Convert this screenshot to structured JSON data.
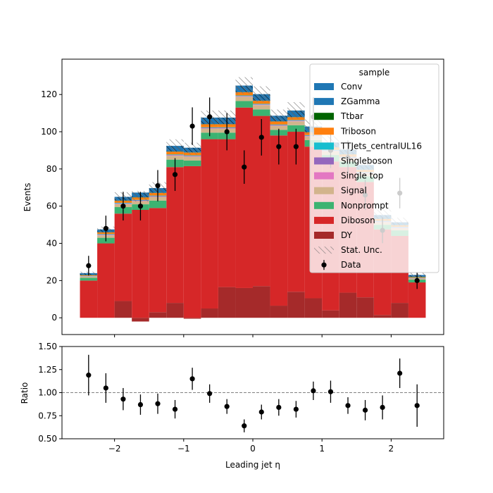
{
  "chart_data": {
    "type": "bar",
    "stacked": true,
    "title": "",
    "x": {
      "label": "Leading jet  η",
      "ticks": [
        -2,
        -1,
        0,
        1,
        2
      ],
      "tick_labels": [
        "−2",
        "−1",
        "0",
        "1",
        "2"
      ],
      "range": [
        -2.76,
        2.76
      ]
    },
    "bins": [
      [
        -2.5,
        -2.25
      ],
      [
        -2.25,
        -2.0
      ],
      [
        -2.0,
        -1.75
      ],
      [
        -1.75,
        -1.5
      ],
      [
        -1.5,
        -1.25
      ],
      [
        -1.25,
        -1.0
      ],
      [
        -1.0,
        -0.75
      ],
      [
        -0.75,
        -0.5
      ],
      [
        -0.5,
        -0.25
      ],
      [
        -0.25,
        0.0
      ],
      [
        0.0,
        0.25
      ],
      [
        0.25,
        0.5
      ],
      [
        0.5,
        0.75
      ],
      [
        0.75,
        1.0
      ],
      [
        1.0,
        1.25
      ],
      [
        1.25,
        1.5
      ],
      [
        1.5,
        1.75
      ],
      [
        1.75,
        2.0
      ],
      [
        2.0,
        2.25
      ],
      [
        2.25,
        2.5
      ]
    ],
    "main": {
      "ylabel": "Events",
      "ylim": [
        -9,
        139
      ],
      "y_ticks": [
        0,
        20,
        40,
        60,
        80,
        100,
        120
      ],
      "legend": {
        "title": "sample",
        "position": "top-right"
      },
      "series": [
        {
          "name": "DY",
          "color": "#a52a2a",
          "values": [
            0,
            0,
            9,
            -2,
            3,
            8,
            -0.5,
            5,
            16.5,
            16,
            17,
            6.5,
            14,
            10.5,
            4,
            13.5,
            11,
            1.5,
            8,
            0
          ]
        },
        {
          "name": "Diboson",
          "color": "#d62728",
          "values": [
            20,
            40,
            47,
            58,
            56,
            73,
            81.5,
            91,
            79.5,
            97,
            91.5,
            91.5,
            86,
            81.5,
            80,
            67.5,
            62,
            46,
            36,
            19
          ]
        },
        {
          "name": "Nonprompt",
          "color": "#3cb371",
          "values": [
            1.5,
            3,
            3.5,
            3,
            4,
            4,
            3,
            3.5,
            3.5,
            3.5,
            3.5,
            3,
            3.5,
            3.5,
            3.5,
            3,
            3,
            2.5,
            3,
            1.5
          ]
        },
        {
          "name": "Signal",
          "color": "#d2b48c",
          "values": [
            0.6,
            1.3,
            1.6,
            1.7,
            2,
            2.1,
            2.1,
            2.2,
            2.2,
            2.3,
            2.3,
            2.2,
            2.1,
            2,
            2,
            1.8,
            1.6,
            1.4,
            1.2,
            0.6
          ]
        },
        {
          "name": "Single top",
          "color": "#e377c2",
          "values": [
            0.1,
            0.2,
            0.2,
            0.2,
            0.2,
            0.2,
            0.2,
            0.2,
            0.2,
            0.2,
            0.2,
            0.2,
            0.2,
            0.2,
            0.2,
            0.2,
            0.2,
            0.2,
            0.2,
            0.1
          ]
        },
        {
          "name": "Singleboson",
          "color": "#9467bd",
          "values": [
            0.1,
            0.2,
            0.2,
            0.2,
            0.2,
            0.2,
            0.2,
            0.2,
            0.2,
            0.2,
            0.2,
            0.2,
            0.2,
            0.2,
            0.2,
            0.2,
            0.2,
            0.2,
            0.2,
            0.1
          ]
        },
        {
          "name": "TTJets_centralUL16",
          "color": "#17becf",
          "values": [
            0.2,
            0.3,
            0.3,
            0.3,
            0.3,
            0.3,
            0.3,
            0.3,
            0.3,
            0.3,
            0.3,
            0.3,
            0.3,
            0.3,
            0.3,
            0.3,
            0.3,
            0.3,
            0.3,
            0.2
          ]
        },
        {
          "name": "Triboson",
          "color": "#ff7f0e",
          "values": [
            0.4,
            0.9,
            1.1,
            1.3,
            1.4,
            1.5,
            1.5,
            1.6,
            1.6,
            1.7,
            1.6,
            1.6,
            1.5,
            1.5,
            1.4,
            1.3,
            1.2,
            1,
            0.8,
            0.4
          ]
        },
        {
          "name": "Ttbar",
          "color": "#006400",
          "values": [
            0.1,
            0.1,
            0.1,
            0.1,
            0.1,
            0.1,
            0.1,
            0.1,
            0.1,
            0.1,
            0.1,
            0.1,
            0.1,
            0.1,
            0.1,
            0.1,
            0.1,
            0.1,
            0.1,
            0.1
          ]
        },
        {
          "name": "ZGamma",
          "color": "#1f77b4",
          "hatch": true,
          "values": [
            1,
            1.5,
            2,
            2.5,
            2.5,
            3,
            2.5,
            3.5,
            3.5,
            3.5,
            3.5,
            3,
            3.5,
            3,
            2.5,
            2.5,
            2.5,
            2,
            1.5,
            1
          ]
        },
        {
          "name": "Conv",
          "color": "#1f77b4",
          "values": [
            0,
            0,
            0,
            0,
            0,
            0,
            0,
            0,
            0,
            0,
            0,
            0,
            0,
            0,
            0,
            0,
            0,
            0,
            0,
            0
          ]
        }
      ],
      "stat_unc": {
        "name": "Stat. Unc.",
        "half_width": [
          0.8,
          1.5,
          2.5,
          2.8,
          3.2,
          3.5,
          3.2,
          3.8,
          3.8,
          4.5,
          4.2,
          3.3,
          4.5,
          3.8,
          3.5,
          4,
          3.2,
          3,
          2.5,
          1.2
        ]
      },
      "data_series": {
        "name": "Data",
        "values": [
          28,
          48,
          60,
          60,
          71,
          77,
          103,
          108,
          100,
          81,
          97,
          92,
          92,
          108,
          90,
          86,
          66,
          47,
          67,
          20
        ],
        "errors": [
          5.3,
          6.9,
          7.7,
          7.7,
          8.4,
          8.8,
          10.1,
          10.4,
          10,
          9,
          9.8,
          9.6,
          9.6,
          10.4,
          9.5,
          9.3,
          8.1,
          6.9,
          8.2,
          4.5
        ]
      }
    },
    "ratio": {
      "ylabel": "Ratio",
      "ylim": [
        0.5,
        1.5
      ],
      "y_ticks": [
        0.5,
        0.75,
        1.0,
        1.25,
        1.5
      ],
      "y_tick_labels": [
        "0.50",
        "0.75",
        "1.00",
        "1.25",
        "1.50"
      ],
      "reference_line": 1.0,
      "values": [
        1.19,
        1.05,
        0.93,
        0.87,
        0.88,
        0.82,
        1.15,
        0.99,
        0.85,
        0.64,
        0.79,
        0.84,
        0.82,
        1.02,
        1.01,
        0.86,
        0.81,
        0.84,
        1.21,
        0.86
      ],
      "errors": [
        0.22,
        0.16,
        0.12,
        0.11,
        0.11,
        0.1,
        0.12,
        0.1,
        0.08,
        0.07,
        0.08,
        0.09,
        0.09,
        0.1,
        0.12,
        0.09,
        0.11,
        0.13,
        0.16,
        0.23
      ]
    }
  }
}
